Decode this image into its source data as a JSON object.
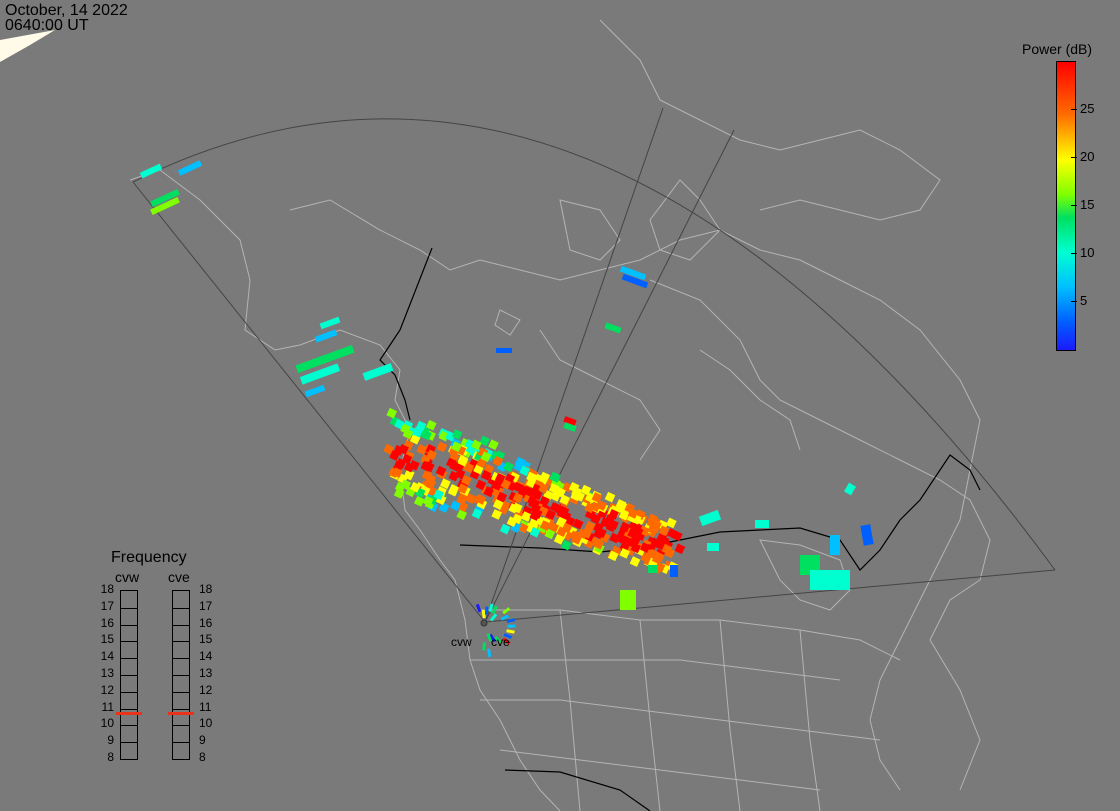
{
  "header": {
    "date": "October, 14 2022",
    "time": "0640:00 UT"
  },
  "colorbar": {
    "title": "Power (dB)",
    "ticks": [
      "25",
      "20",
      "15",
      "10",
      "5"
    ],
    "range": [
      0,
      30
    ],
    "colors": [
      "#ff0000",
      "#ff6a00",
      "#ffff00",
      "#7fff00",
      "#00e060",
      "#00ffd0",
      "#00c0ff",
      "#0060ff",
      "#1a1aff"
    ]
  },
  "frequency_panel": {
    "title": "Frequency",
    "radars": [
      {
        "name": "cvw",
        "selected_mhz": 10.7
      },
      {
        "name": "cve",
        "selected_mhz": 10.7
      }
    ],
    "scale": [
      "18",
      "17",
      "16",
      "15",
      "14",
      "13",
      "12",
      "11",
      "10",
      "9",
      "8"
    ],
    "marker_color": "#e8331a"
  },
  "radar_sites": [
    {
      "name": "cvw"
    },
    {
      "name": "cve"
    }
  ],
  "map_colors": {
    "background": "#7a7a7a",
    "coastline": "#b4b4b4",
    "fov": "#444444",
    "border": "#000000",
    "daylight": "#fffbe8"
  }
}
